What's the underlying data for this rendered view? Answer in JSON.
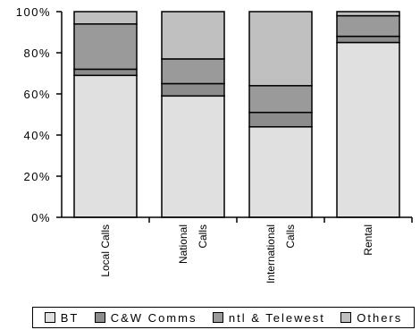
{
  "chart_data": {
    "type": "bar",
    "stacked": true,
    "categories": [
      [
        "Local Calls"
      ],
      [
        "National",
        "Calls"
      ],
      [
        "International",
        "Calls"
      ],
      [
        "Rental"
      ]
    ],
    "series": [
      {
        "name": "BT",
        "color": "#e0e0e0",
        "values": [
          69,
          59,
          44,
          85
        ]
      },
      {
        "name": "C&W Comms",
        "color": "#8c8c8c",
        "values": [
          3,
          6,
          7,
          3
        ]
      },
      {
        "name": "ntl & Telewest",
        "color": "#9a9a9a",
        "values": [
          22,
          12,
          13,
          10
        ]
      },
      {
        "name": "Others",
        "color": "#c0c0c0",
        "values": [
          6,
          23,
          36,
          2
        ]
      }
    ],
    "ylim": [
      0,
      100
    ],
    "yticks": [
      "0%",
      "20%",
      "40%",
      "60%",
      "80%",
      "100%"
    ],
    "grid": false,
    "legend_position": "bottom"
  },
  "legend": {
    "items": [
      {
        "label": "BT",
        "color": "#e0e0e0"
      },
      {
        "label": "C&W Comms",
        "color": "#8c8c8c"
      },
      {
        "label": "ntl & Telewest",
        "color": "#9a9a9a"
      },
      {
        "label": "Others",
        "color": "#c0c0c0"
      }
    ]
  }
}
